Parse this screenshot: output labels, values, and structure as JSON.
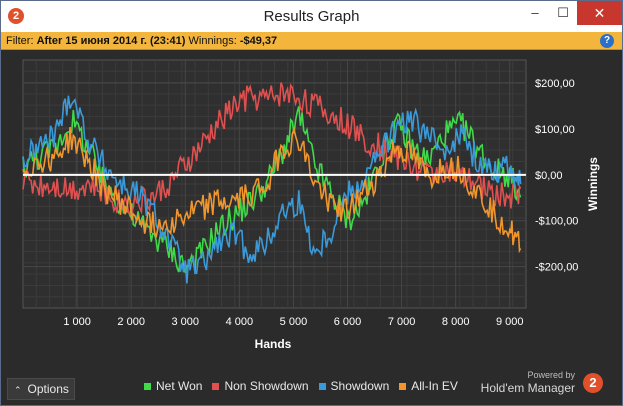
{
  "window": {
    "title": "Results Graph",
    "logo_text": "2",
    "minimize_glyph": "–",
    "maximize_glyph": "☐",
    "close_glyph": "✕"
  },
  "filter": {
    "label": "Filter:",
    "value": "After 15 июня 2014 г. (23:41)",
    "winnings_label": "Winnings:",
    "winnings_value": "-$49,37",
    "help_glyph": "?"
  },
  "chart_data": {
    "type": "line",
    "xlabel": "Hands",
    "ylabel": "Winnings",
    "xlim": [
      0,
      9300
    ],
    "ylim": [
      -290,
      250
    ],
    "x_ticks": [
      1000,
      2000,
      3000,
      4000,
      5000,
      6000,
      7000,
      8000,
      9000
    ],
    "x_tick_labels": [
      "1 000",
      "2 000",
      "3 000",
      "4 000",
      "5 000",
      "6 000",
      "7 000",
      "8 000",
      "9 000"
    ],
    "y_ticks": [
      200,
      100,
      0,
      -100,
      -200
    ],
    "y_tick_labels": [
      "$200,00",
      "$100,00",
      "$0,00",
      "-$100,00",
      "-$200,00"
    ],
    "grid": true,
    "legend_position": "bottom",
    "x": [
      0,
      300,
      600,
      900,
      1200,
      1500,
      1800,
      2100,
      2400,
      2700,
      3000,
      3300,
      3600,
      3900,
      4200,
      4500,
      4800,
      5100,
      5400,
      5700,
      6000,
      6300,
      6600,
      6900,
      7200,
      7500,
      7800,
      8100,
      8400,
      8700,
      9000,
      9200
    ],
    "series": [
      {
        "name": "Net Won",
        "color": "#3fd94a",
        "values": [
          20,
          40,
          60,
          120,
          60,
          -20,
          -60,
          -100,
          -130,
          -160,
          -200,
          -170,
          -120,
          -90,
          -60,
          -20,
          50,
          130,
          20,
          -40,
          -100,
          -60,
          30,
          110,
          60,
          30,
          90,
          110,
          60,
          10,
          0,
          -49
        ]
      },
      {
        "name": "Non Showdown",
        "color": "#e05050",
        "values": [
          -10,
          -20,
          -20,
          -30,
          -20,
          -40,
          -60,
          -60,
          -50,
          -20,
          20,
          60,
          110,
          150,
          170,
          165,
          180,
          170,
          150,
          130,
          110,
          80,
          60,
          40,
          20,
          0,
          10,
          -10,
          -20,
          -40,
          -50,
          -30
        ]
      },
      {
        "name": "Showdown",
        "color": "#3a9ad9",
        "values": [
          30,
          60,
          90,
          180,
          80,
          20,
          -20,
          -40,
          -80,
          -140,
          -210,
          -200,
          -150,
          -130,
          -170,
          -150,
          -80,
          -60,
          -170,
          -120,
          -40,
          -10,
          50,
          100,
          120,
          80,
          60,
          90,
          30,
          10,
          20,
          -20
        ]
      },
      {
        "name": "All-In EV",
        "color": "#f0962d",
        "values": [
          10,
          30,
          40,
          80,
          30,
          -30,
          -60,
          -90,
          -110,
          -100,
          -90,
          -70,
          -60,
          -60,
          -40,
          -20,
          60,
          80,
          -20,
          -60,
          -80,
          -40,
          0,
          60,
          40,
          -10,
          20,
          10,
          -40,
          -80,
          -120,
          -160
        ]
      }
    ]
  },
  "bottom": {
    "options_label": "Options",
    "options_caret": "⌃",
    "powered_by": "Powered by",
    "brand": "Hold'em Manager",
    "brand_logo_text": "2"
  }
}
